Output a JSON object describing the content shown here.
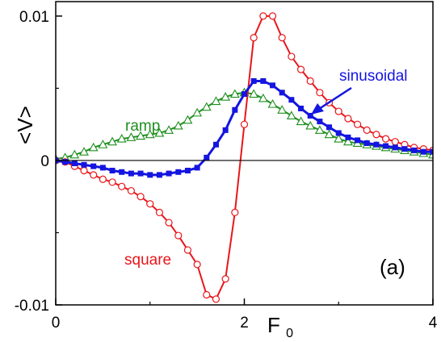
{
  "chart_data": {
    "type": "line",
    "title": "",
    "panel_label": "(a)",
    "xlabel": "F",
    "xlabel_subscript": "0",
    "ylabel": "<V>",
    "xlim": [
      0,
      4
    ],
    "ylim": [
      -0.01,
      0.011
    ],
    "x_ticks": [
      {
        "value": 0,
        "label": "0"
      },
      {
        "value": 2,
        "label": "2"
      },
      {
        "value": 4,
        "label": "4"
      }
    ],
    "y_ticks": [
      {
        "value": -0.01,
        "label": "-0.01"
      },
      {
        "value": 0,
        "label": "0"
      },
      {
        "value": 0.01,
        "label": "0.01"
      }
    ],
    "zero_line": true,
    "grid": false,
    "series": [
      {
        "name": "square",
        "color": "#e8161b",
        "marker": "open-circle",
        "x": [
          0.0,
          0.1,
          0.2,
          0.3,
          0.4,
          0.5,
          0.6,
          0.7,
          0.8,
          0.9,
          1.0,
          1.1,
          1.2,
          1.3,
          1.4,
          1.5,
          1.6,
          1.7,
          1.8,
          1.9,
          2.0,
          2.1,
          2.2,
          2.3,
          2.4,
          2.5,
          2.6,
          2.7,
          2.8,
          2.9,
          3.0,
          3.1,
          3.2,
          3.3,
          3.4,
          3.5,
          3.6,
          3.7,
          3.8,
          3.9,
          4.0
        ],
        "y": [
          0.0,
          -0.0001,
          -0.0004,
          -0.0007,
          -0.001,
          -0.0013,
          -0.0015,
          -0.0018,
          -0.0021,
          -0.0025,
          -0.003,
          -0.0036,
          -0.0043,
          -0.0052,
          -0.0062,
          -0.0072,
          -0.0093,
          -0.0096,
          -0.0082,
          -0.0036,
          0.0025,
          0.0085,
          0.01,
          0.01,
          0.0085,
          0.0072,
          0.0063,
          0.0055,
          0.0047,
          0.004,
          0.0034,
          0.0029,
          0.0025,
          0.0021,
          0.0018,
          0.0015,
          0.0013,
          0.0011,
          0.0009,
          0.0008,
          0.0007
        ]
      },
      {
        "name": "ramp",
        "color": "#1e8f1e",
        "marker": "open-triangle",
        "x": [
          0.0,
          0.1,
          0.2,
          0.3,
          0.4,
          0.5,
          0.6,
          0.7,
          0.8,
          0.9,
          1.0,
          1.1,
          1.2,
          1.3,
          1.4,
          1.5,
          1.6,
          1.7,
          1.8,
          1.9,
          2.0,
          2.1,
          2.2,
          2.3,
          2.4,
          2.5,
          2.6,
          2.7,
          2.8,
          2.9,
          3.0,
          3.1,
          3.2,
          3.3,
          3.4,
          3.5,
          3.6,
          3.7,
          3.8,
          3.9,
          4.0
        ],
        "y": [
          0.0001,
          0.0002,
          0.0004,
          0.0006,
          0.0009,
          0.0011,
          0.0013,
          0.0015,
          0.0016,
          0.0017,
          0.0018,
          0.0019,
          0.0021,
          0.0024,
          0.0028,
          0.0033,
          0.0037,
          0.0041,
          0.0044,
          0.0046,
          0.0047,
          0.0046,
          0.0043,
          0.0039,
          0.0035,
          0.0031,
          0.0027,
          0.0024,
          0.0021,
          0.0018,
          0.0015,
          0.0013,
          0.0012,
          0.0011,
          0.001,
          0.0009,
          0.0008,
          0.0007,
          0.0006,
          0.0005,
          0.0004
        ]
      },
      {
        "name": "sinusoidal",
        "color": "#1515e0",
        "marker": "filled-square",
        "x": [
          0.0,
          0.1,
          0.2,
          0.3,
          0.4,
          0.5,
          0.6,
          0.7,
          0.8,
          0.9,
          1.0,
          1.1,
          1.2,
          1.3,
          1.4,
          1.5,
          1.6,
          1.7,
          1.8,
          1.9,
          2.0,
          2.1,
          2.2,
          2.3,
          2.4,
          2.5,
          2.6,
          2.7,
          2.8,
          2.9,
          3.0,
          3.1,
          3.2,
          3.3,
          3.4,
          3.5,
          3.6,
          3.7,
          3.8,
          3.9,
          4.0
        ],
        "y": [
          0.0,
          -0.0001,
          -0.0002,
          -0.0003,
          -0.0004,
          -0.0005,
          -0.0007,
          -0.0008,
          -0.0009,
          -0.0009,
          -0.001,
          -0.001,
          -0.0009,
          -0.0008,
          -0.0007,
          -0.0005,
          0.0002,
          0.0011,
          0.0021,
          0.0035,
          0.0046,
          0.0055,
          0.0055,
          0.0052,
          0.0047,
          0.0042,
          0.0036,
          0.0031,
          0.0027,
          0.0023,
          0.0019,
          0.0016,
          0.0014,
          0.0012,
          0.0011,
          0.001,
          0.0009,
          0.0008,
          0.0007,
          0.0006,
          0.0006
        ]
      }
    ]
  }
}
